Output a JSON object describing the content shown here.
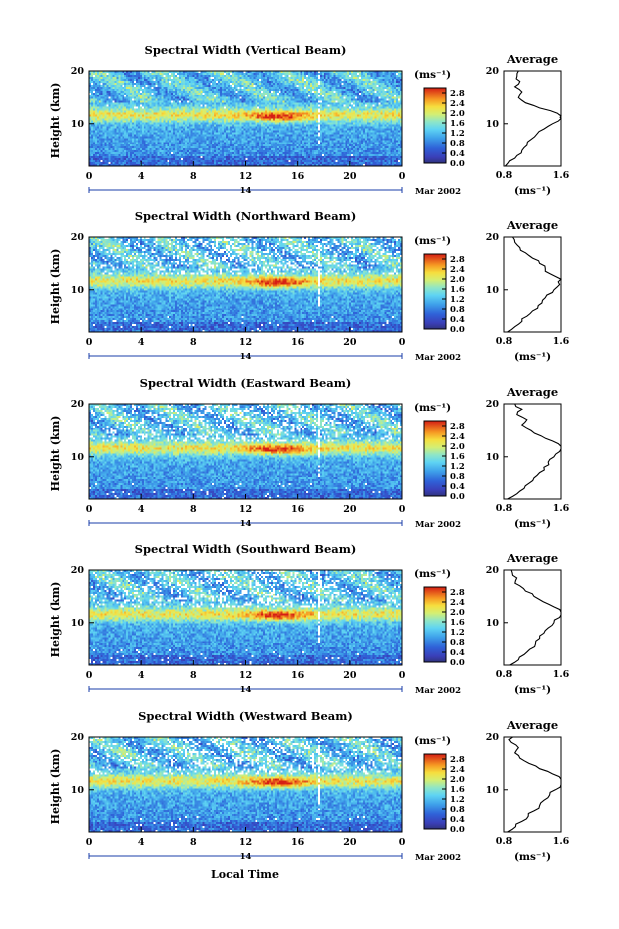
{
  "figure": {
    "xlabel": "Local Time",
    "date_label": "Mar 2002",
    "date_day": "14",
    "colorbar_unit": "(ms⁻¹)",
    "colorbar_ticks": [
      "0.0",
      "0.4",
      "0.8",
      "1.2",
      "1.6",
      "2.0",
      "2.4",
      "2.8"
    ],
    "avg_title": "Average",
    "avg_xlabel": "(ms⁻¹)"
  },
  "chart_data": [
    {
      "type": "heatmap",
      "title": "Spectral Width (Vertical Beam)",
      "ylabel": "Height (km)",
      "x_ticks": [
        "0",
        "4",
        "8",
        "12",
        "16",
        "20",
        "0"
      ],
      "y_ticks": [
        "10",
        "20"
      ],
      "xlim": [
        0,
        24
      ],
      "ylim": [
        2,
        20
      ],
      "colorscale_range": [
        0,
        3.0
      ],
      "colors": {
        "low": "#1e2a8c",
        "mid": "#5ad6f0",
        "high": "#d81e14"
      },
      "average_profile": {
        "x_ticks": [
          "0.8",
          "1.6"
        ],
        "y_ticks": [
          "10",
          "20"
        ],
        "xlim": [
          0.8,
          1.6
        ],
        "ylim": [
          2,
          20
        ],
        "height_km": [
          2,
          3,
          4,
          5,
          6,
          7,
          8,
          9,
          10,
          11,
          11.5,
          12,
          13,
          14,
          15,
          16,
          17,
          18,
          19,
          20
        ],
        "width": [
          0.82,
          0.88,
          0.98,
          1.05,
          1.12,
          1.18,
          1.26,
          1.36,
          1.48,
          1.6,
          1.62,
          1.55,
          1.3,
          1.1,
          1.0,
          1.05,
          0.95,
          1.02,
          0.98,
          1.0
        ]
      }
    },
    {
      "type": "heatmap",
      "title": "Spectral Width (Northward Beam)",
      "ylabel": "Height (km)",
      "x_ticks": [
        "0",
        "4",
        "8",
        "12",
        "16",
        "20",
        "0"
      ],
      "y_ticks": [
        "10",
        "20"
      ],
      "xlim": [
        0,
        24
      ],
      "ylim": [
        2,
        20
      ],
      "colorscale_range": [
        0,
        3.0
      ],
      "colors": {
        "low": "#1e2a8c",
        "mid": "#5ad6f0",
        "high": "#d81e14"
      },
      "average_profile": {
        "x_ticks": [
          "0.8",
          "1.6"
        ],
        "y_ticks": [
          "10",
          "20"
        ],
        "xlim": [
          0.8,
          1.6
        ],
        "ylim": [
          2,
          20
        ],
        "height_km": [
          2,
          3,
          4,
          5,
          6,
          7,
          8,
          9,
          10,
          11,
          12,
          13,
          14,
          15,
          16,
          17,
          18,
          19,
          20
        ],
        "width": [
          0.85,
          0.95,
          1.05,
          1.12,
          1.2,
          1.28,
          1.34,
          1.4,
          1.5,
          1.58,
          1.62,
          1.45,
          1.38,
          1.3,
          1.2,
          1.1,
          1.02,
          0.95,
          0.92
        ]
      }
    },
    {
      "type": "heatmap",
      "title": "Spectral Width (Eastward Beam)",
      "ylabel": "Height (km)",
      "x_ticks": [
        "0",
        "4",
        "8",
        "12",
        "16",
        "20",
        "0"
      ],
      "y_ticks": [
        "10",
        "20"
      ],
      "xlim": [
        0,
        24
      ],
      "ylim": [
        2,
        20
      ],
      "colorscale_range": [
        0,
        3.0
      ],
      "colors": {
        "low": "#1e2a8c",
        "mid": "#5ad6f0",
        "high": "#d81e14"
      },
      "average_profile": {
        "x_ticks": [
          "0.8",
          "1.6"
        ],
        "y_ticks": [
          "10",
          "20"
        ],
        "xlim": [
          0.8,
          1.6
        ],
        "ylim": [
          2,
          20
        ],
        "height_km": [
          2,
          3,
          4,
          5,
          6,
          7,
          8,
          9,
          10,
          11,
          12,
          13,
          14,
          15,
          16,
          17,
          18,
          19,
          20
        ],
        "width": [
          0.85,
          0.98,
          1.08,
          1.15,
          1.22,
          1.3,
          1.36,
          1.42,
          1.5,
          1.58,
          1.65,
          1.48,
          1.32,
          1.18,
          1.05,
          1.12,
          0.98,
          1.05,
          0.95
        ]
      }
    },
    {
      "type": "heatmap",
      "title": "Spectral Width (Southward Beam)",
      "ylabel": "Height (km)",
      "x_ticks": [
        "0",
        "4",
        "8",
        "12",
        "16",
        "20",
        "0"
      ],
      "y_ticks": [
        "10",
        "20"
      ],
      "xlim": [
        0,
        24
      ],
      "ylim": [
        2,
        20
      ],
      "colorscale_range": [
        0,
        3.0
      ],
      "colors": {
        "low": "#1e2a8c",
        "mid": "#5ad6f0",
        "high": "#d81e14"
      },
      "average_profile": {
        "x_ticks": [
          "0.8",
          "1.6"
        ],
        "y_ticks": [
          "10",
          "20"
        ],
        "xlim": [
          0.8,
          1.6
        ],
        "ylim": [
          2,
          20
        ],
        "height_km": [
          2,
          3,
          4,
          5,
          6,
          7,
          8,
          9,
          10,
          11,
          12,
          13,
          14,
          15,
          16,
          17,
          18,
          19,
          20
        ],
        "width": [
          0.88,
          1.0,
          1.08,
          1.16,
          1.24,
          1.3,
          1.36,
          1.42,
          1.5,
          1.58,
          1.66,
          1.5,
          1.35,
          1.22,
          1.1,
          1.02,
          0.96,
          0.92,
          0.9
        ]
      }
    },
    {
      "type": "heatmap",
      "title": "Spectral Width (Westward Beam)",
      "ylabel": "Height (km)",
      "x_ticks": [
        "0",
        "4",
        "8",
        "12",
        "16",
        "20",
        "0"
      ],
      "y_ticks": [
        "10",
        "20"
      ],
      "xlim": [
        0,
        24
      ],
      "ylim": [
        2,
        20
      ],
      "colorscale_range": [
        0,
        3.0
      ],
      "colors": {
        "low": "#1e2a8c",
        "mid": "#5ad6f0",
        "high": "#d81e14"
      },
      "average_profile": {
        "x_ticks": [
          "0.8",
          "1.6"
        ],
        "y_ticks": [
          "10",
          "20"
        ],
        "xlim": [
          0.8,
          1.6
        ],
        "ylim": [
          2,
          20
        ],
        "height_km": [
          2,
          3,
          4,
          5,
          6,
          7,
          8,
          9,
          10,
          11,
          12,
          13,
          14,
          15,
          16,
          17,
          18,
          19,
          20
        ],
        "width": [
          0.85,
          0.96,
          1.05,
          1.14,
          1.22,
          1.3,
          1.36,
          1.44,
          1.52,
          1.6,
          1.65,
          1.48,
          1.3,
          1.15,
          1.02,
          0.95,
          1.0,
          0.9,
          0.92
        ]
      }
    }
  ]
}
